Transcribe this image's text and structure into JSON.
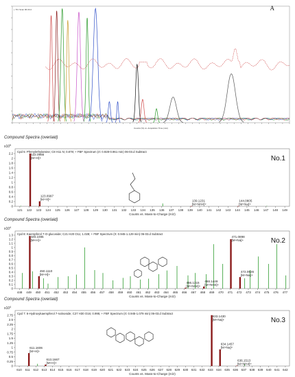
{
  "top_panel": {
    "letter": "A",
    "legend_label": "+ TIC Scan 06-03.d",
    "xlabel": "Counts (%) vs. Acquisition Time (min)"
  },
  "colors": {
    "trace_red": "#d04848",
    "peak_dark": "#8a1a1a",
    "green": "#2a9a2a",
    "blue": "#3050c8",
    "gray": "#555555",
    "black": "#111111"
  },
  "chart_data": [
    {
      "type": "line",
      "panel": "chromatogram",
      "title": "+ TIC Scan 06-03.d",
      "xlabel": "Counts (%) vs. Acquisition Time (min)",
      "ylabel": "",
      "series": [
        {
          "name": "",
          "color": "#d04848",
          "style": "dashed-baseline",
          "values_note": ""
        },
        {
          "name": "",
          "color": "#555555",
          "style": "peaks"
        }
      ],
      "peaks": [
        {
          "x": 0.14,
          "h": 0.92,
          "w": 0.004,
          "color": "#d04848"
        },
        {
          "x": 0.16,
          "h": 0.96,
          "w": 0.004,
          "color": "#8a1a1a"
        },
        {
          "x": 0.18,
          "h": 0.98,
          "w": 0.005,
          "color": "#2a9a2a"
        },
        {
          "x": 0.2,
          "h": 0.88,
          "w": 0.004,
          "color": "#c89a2a"
        },
        {
          "x": 0.24,
          "h": 0.95,
          "w": 0.006,
          "color": "#c850c8"
        },
        {
          "x": 0.27,
          "h": 0.9,
          "w": 0.004,
          "color": "#2a9a2a"
        },
        {
          "x": 0.3,
          "h": 0.98,
          "w": 0.008,
          "color": "#3050c8"
        },
        {
          "x": 0.35,
          "h": 0.18,
          "w": 0.004,
          "color": "#3050c8"
        },
        {
          "x": 0.38,
          "h": 0.18,
          "w": 0.003,
          "color": "#3050c8"
        },
        {
          "x": 0.45,
          "h": 0.5,
          "w": 0.005,
          "color": "#111111"
        },
        {
          "x": 0.47,
          "h": 0.2,
          "w": 0.005,
          "color": "#d04848"
        },
        {
          "x": 0.52,
          "h": 0.12,
          "w": 0.004,
          "color": "#2a9a2a"
        },
        {
          "x": 0.58,
          "h": 0.22,
          "w": 0.012,
          "color": "#555555"
        },
        {
          "x": 0.79,
          "h": 0.42,
          "w": 0.015,
          "color": "#555555"
        }
      ]
    },
    {
      "type": "bar",
      "panel": "No.1",
      "section_title": "Compound Spectra (overlaid)",
      "header": "Cpd 5: Phenylethylamine; C8 H11 N; 0.878; + FBF Spectrum (rt: 0.928-0.961 min) 06-03.d Subtract",
      "scale": "x10",
      "scale_exp": "5",
      "label": "No.1",
      "xlabel": "Counts vs. Mass-to-Charge (m/z)",
      "xlim": [
        120.5,
        149.5
      ],
      "ylim": [
        0,
        2.4
      ],
      "yticks": [
        "0",
        "0.2",
        "0.4",
        "0.6",
        "0.8",
        "1",
        "1.2",
        "1.4",
        "1.6",
        "1.8",
        "2",
        "2.2"
      ],
      "xticks": [
        "121",
        "122",
        "123",
        "124",
        "125",
        "126",
        "127",
        "128",
        "129",
        "130",
        "131",
        "132",
        "133",
        "134",
        "135",
        "136",
        "137",
        "138",
        "139",
        "140",
        "141",
        "142",
        "143",
        "144",
        "145",
        "146",
        "147",
        "148",
        "149"
      ],
      "red_bars": [
        {
          "x": 122.0966,
          "y": 2.2
        },
        {
          "x": 123.0997,
          "y": 0.21
        },
        {
          "x": 139.1231,
          "y": 0.01
        },
        {
          "x": 144.0805,
          "y": 0.01
        }
      ],
      "green_bars": [
        {
          "x": 121.1,
          "y": 0.02
        },
        {
          "x": 136.1,
          "y": 0.12
        },
        {
          "x": 147.1,
          "y": 0.02
        }
      ],
      "labels": [
        {
          "x": 122.0966,
          "y": 2.2,
          "mz": "122.0966",
          "ion": "[M+H]+"
        },
        {
          "x": 123.0997,
          "y": 0.21,
          "mz": "123.0997",
          "ion": "[M+H]+"
        },
        {
          "x": 139.1231,
          "y": 0.01,
          "mz": "139.1231",
          "ion": "[M+NH4]+"
        },
        {
          "x": 144.0805,
          "y": 0.01,
          "mz": "144.0805",
          "ion": "[M+Na]+"
        }
      ]
    },
    {
      "type": "bar",
      "panel": "No.2",
      "section_title": "Compound Spectra (overlaid)",
      "header": "Cpd 8: Kaempferol 7-O-glucoside; C21 H20 O11; 1.028; + FBF Spectrum (rt: 0.945-1.129 min) 06-03.d Subtract",
      "scale": "x10",
      "scale_exp": "4",
      "label": "No.2",
      "xlabel": "Counts vs. Mass-to-Charge (m/z)",
      "xlim": [
        447.5,
        477.5
      ],
      "ylim": [
        0,
        1.4
      ],
      "yticks": [
        "0",
        "0.1",
        "0.2",
        "0.3",
        "0.4",
        "0.5",
        "0.6",
        "0.7",
        "0.8",
        "0.9",
        "1",
        "1.1",
        "1.2",
        "1.3"
      ],
      "xticks": [
        "448",
        "449",
        "450",
        "451",
        "452",
        "453",
        "454",
        "455",
        "456",
        "457",
        "458",
        "459",
        "460",
        "461",
        "462",
        "463",
        "464",
        "465",
        "466",
        "467",
        "468",
        "469",
        "470",
        "471",
        "472",
        "473",
        "474",
        "475",
        "476",
        "477"
      ],
      "red_bars": [
        {
          "x": 449.1085,
          "y": 1.28
        },
        {
          "x": 450.111,
          "y": 0.3
        },
        {
          "x": 466.1315,
          "y": 0.02
        },
        {
          "x": 468.1449,
          "y": 0.05
        },
        {
          "x": 471.0898,
          "y": 1.2
        },
        {
          "x": 472.0926,
          "y": 0.28
        }
      ],
      "green_bars": [
        {
          "x": 448.3,
          "y": 0.38
        },
        {
          "x": 449.4,
          "y": 0.42
        },
        {
          "x": 450.6,
          "y": 0.25
        },
        {
          "x": 451.1,
          "y": 0.12
        },
        {
          "x": 452.2,
          "y": 0.28
        },
        {
          "x": 453.3,
          "y": 0.3
        },
        {
          "x": 454.2,
          "y": 0.34
        },
        {
          "x": 455.1,
          "y": 1.0
        },
        {
          "x": 456.2,
          "y": 0.45
        },
        {
          "x": 457.1,
          "y": 0.38
        },
        {
          "x": 458.2,
          "y": 0.2
        },
        {
          "x": 459.3,
          "y": 0.26
        },
        {
          "x": 460.1,
          "y": 0.3
        },
        {
          "x": 461.2,
          "y": 0.22
        },
        {
          "x": 462.1,
          "y": 0.24
        },
        {
          "x": 463.2,
          "y": 0.35
        },
        {
          "x": 464.1,
          "y": 0.44
        },
        {
          "x": 465.2,
          "y": 0.55
        },
        {
          "x": 466.4,
          "y": 0.32
        },
        {
          "x": 467.2,
          "y": 0.38
        },
        {
          "x": 468.4,
          "y": 0.35
        },
        {
          "x": 469.2,
          "y": 1.08
        },
        {
          "x": 470.2,
          "y": 0.6
        },
        {
          "x": 472.6,
          "y": 0.25
        },
        {
          "x": 473.2,
          "y": 0.45
        },
        {
          "x": 474.1,
          "y": 0.78
        },
        {
          "x": 475.2,
          "y": 0.6
        },
        {
          "x": 476.1,
          "y": 1.08
        },
        {
          "x": 477.1,
          "y": 0.32
        }
      ],
      "labels": [
        {
          "x": 449.1085,
          "y": 1.28,
          "mz": "449.1085",
          "ion": "[M+H]+"
        },
        {
          "x": 450.111,
          "y": 0.3,
          "mz": "450.1110",
          "ion": "[M+H]+"
        },
        {
          "x": 466.1315,
          "y": 0.02,
          "mz": "466.1315",
          "ion": "[M+NH4]+"
        },
        {
          "x": 468.1449,
          "y": 0.05,
          "mz": "468.1449",
          "ion": "[M+NH4]+"
        },
        {
          "x": 471.0898,
          "y": 1.2,
          "mz": "471.0898",
          "ion": "[M+Na]+"
        },
        {
          "x": 472.0926,
          "y": 0.28,
          "mz": "472.0926",
          "ion": "[M+Na]+"
        }
      ]
    },
    {
      "type": "bar",
      "panel": "No.3",
      "section_title": "Compound Spectra (overlaid)",
      "header": "Cpd 7: 6-Hydroxykaempferol 7-rutinoside; C27 H30 O16; 0.995; + FBF Spectrum (rt: 0.945-1.079 min) 06-03.d Subtract",
      "scale": "x10",
      "scale_exp": "4",
      "label": "No.3",
      "xlabel": "Counts vs. Mass-to-Charge (m/z)",
      "xlim": [
        609.5,
        642.5
      ],
      "ylim": [
        0,
        3.0
      ],
      "yticks": [
        "0",
        "0.25",
        "0.5",
        "0.75",
        "1",
        "1.25",
        "1.5",
        "1.75",
        "2",
        "2.25",
        "2.5",
        "2.75"
      ],
      "xticks": [
        "610",
        "611",
        "612",
        "613",
        "614",
        "615",
        "616",
        "617",
        "618",
        "619",
        "620",
        "621",
        "622",
        "623",
        "624",
        "625",
        "626",
        "627",
        "628",
        "629",
        "630",
        "631",
        "632",
        "633",
        "634",
        "635",
        "636",
        "637",
        "638",
        "639",
        "640",
        "641",
        "642"
      ],
      "red_bars": [
        {
          "x": 611.1606,
          "y": 0.7
        },
        {
          "x": 613.1667,
          "y": 0.08
        },
        {
          "x": 633.143,
          "y": 2.75
        },
        {
          "x": 634.1457,
          "y": 0.9
        },
        {
          "x": 636.1513,
          "y": 0.02
        }
      ],
      "green_bars": [
        {
          "x": 612.2,
          "y": 0.12
        },
        {
          "x": 637.1,
          "y": 0.1
        }
      ],
      "labels": [
        {
          "x": 611.1606,
          "y": 0.7,
          "mz": "611.1606",
          "ion": "[M+H]+"
        },
        {
          "x": 613.1667,
          "y": 0.08,
          "mz": "613.1667",
          "ion": "[M+H]+"
        },
        {
          "x": 633.143,
          "y": 2.75,
          "mz": "633.1430",
          "ion": "[M+Na]+"
        },
        {
          "x": 634.1457,
          "y": 0.9,
          "mz": "634.1457",
          "ion": "[M+Na]+"
        },
        {
          "x": 636.1513,
          "y": 0.02,
          "mz": "636.1513",
          "ion": "[M+NH4]+"
        }
      ]
    }
  ]
}
